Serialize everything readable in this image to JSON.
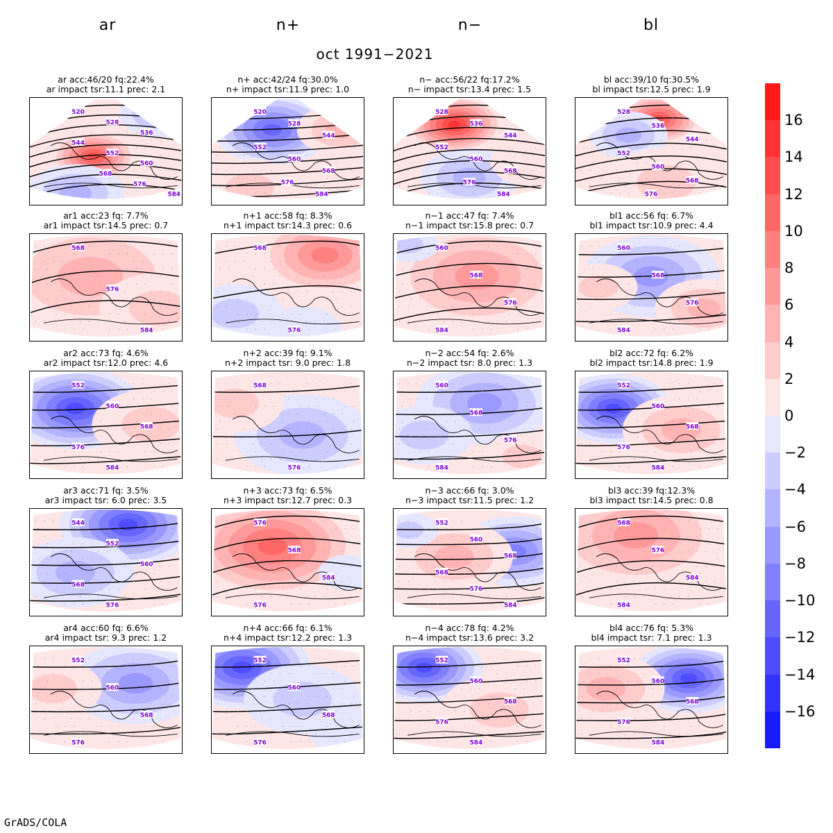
{
  "column_headers": [
    "ar",
    "n+",
    "n−",
    "bl"
  ],
  "main_title": "oct 1991−2021",
  "footer": "GrADS/COLA",
  "colors": {
    "red_max": "#ff1a1a",
    "blue_max": "#1a1aff",
    "contour": "#000000",
    "contour_label": "#7b00d4",
    "coast": "#000000"
  },
  "chart_data": {
    "type": "heatmap",
    "variable_contour_levels": [
      520,
      528,
      536,
      544,
      552,
      560,
      568,
      576,
      584
    ],
    "colorbar": {
      "levels": [
        16,
        14,
        12,
        10,
        8,
        6,
        4,
        2,
        0,
        -2,
        -4,
        -6,
        -8,
        -10,
        -12,
        -14,
        -16
      ],
      "labels": [
        "16",
        "14",
        "12",
        "10",
        "8",
        "6",
        "4",
        "2",
        "0",
        "−2",
        "−4",
        "−6",
        "−8",
        "−10",
        "−12",
        "−14",
        "−16"
      ],
      "colors": [
        "#ff1a1a",
        "#ff3333",
        "#ff4d4d",
        "#ff6666",
        "#ff8080",
        "#ff9999",
        "#ffb3b3",
        "#ffcccc",
        "#ffe6e6",
        "#e6e6ff",
        "#ccccff",
        "#b3b3ff",
        "#9999ff",
        "#8080ff",
        "#6666ff",
        "#4d4dff",
        "#3333ff",
        "#1a1aff"
      ]
    },
    "panels": [
      {
        "id": "ar",
        "title1": "ar acc:46/20 fq:22.4%",
        "title2": "ar impact tsr:11.1 prec: 2.1",
        "anom": [
          {
            "x": 0.42,
            "y": 0.55,
            "v": 14,
            "r": 0.22
          },
          {
            "x": 0.85,
            "y": 0.15,
            "v": -6,
            "r": 0.2
          },
          {
            "x": 0.3,
            "y": 0.9,
            "v": -5,
            "r": 0.25
          }
        ],
        "labels": [
          "520",
          "528",
          "536",
          "544",
          "552",
          "560",
          "568",
          "576",
          "584"
        ]
      },
      {
        "id": "n+",
        "title1": "n+ acc:42/24 fq:30.0%",
        "title2": "n+ impact tsr:11.9 prec: 1.0",
        "anom": [
          {
            "x": 0.4,
            "y": 0.3,
            "v": -11,
            "r": 0.3
          },
          {
            "x": 0.85,
            "y": 0.3,
            "v": 6,
            "r": 0.22
          },
          {
            "x": 0.25,
            "y": 0.85,
            "v": 3,
            "r": 0.25
          }
        ],
        "labels": [
          "520",
          "528",
          "544",
          "552",
          "560",
          "568",
          "576",
          "584"
        ]
      },
      {
        "id": "n-",
        "title1": "n− acc:56/22 fq:17.2%",
        "title2": "n− impact tsr:13.4 prec: 1.5",
        "anom": [
          {
            "x": 0.4,
            "y": 0.25,
            "v": 16,
            "r": 0.25
          },
          {
            "x": 0.5,
            "y": 0.75,
            "v": -6,
            "r": 0.25
          },
          {
            "x": 0.9,
            "y": 0.6,
            "v": 2,
            "r": 0.2
          }
        ],
        "labels": [
          "528",
          "536",
          "544",
          "552",
          "560",
          "568",
          "576",
          "584"
        ]
      },
      {
        "id": "bl",
        "title1": "bl acc:39/10 fq:30.5%",
        "title2": "bl impact tsr:12.5 prec: 1.9",
        "anom": [
          {
            "x": 0.55,
            "y": 0.2,
            "v": 14,
            "r": 0.22
          },
          {
            "x": 0.35,
            "y": 0.35,
            "v": -6,
            "r": 0.2
          },
          {
            "x": 0.6,
            "y": 0.8,
            "v": 3,
            "r": 0.3
          }
        ],
        "labels": [
          "528",
          "536",
          "544",
          "552",
          "560",
          "568",
          "576"
        ]
      },
      {
        "id": "ar1",
        "title1": "ar1 acc:23 fq: 7.7%",
        "title2": "ar1 impact tsr:14.5 prec: 0.7",
        "anom": [
          {
            "x": 0.4,
            "y": 0.4,
            "v": 5,
            "r": 0.5
          },
          {
            "x": 0.85,
            "y": 0.7,
            "v": 4,
            "r": 0.3
          }
        ],
        "labels": [
          "568",
          "576",
          "584"
        ]
      },
      {
        "id": "n+1",
        "title1": "n+1 acc:58 fq: 8.3%",
        "title2": "n+1 impact tsr:14.3 prec: 0.6",
        "anom": [
          {
            "x": 0.75,
            "y": 0.2,
            "v": 9,
            "r": 0.35
          },
          {
            "x": 0.15,
            "y": 0.75,
            "v": -4,
            "r": 0.25
          },
          {
            "x": 0.6,
            "y": 0.9,
            "v": -2,
            "r": 0.2
          }
        ],
        "labels": [
          "568",
          "576"
        ]
      },
      {
        "id": "n-1",
        "title1": "n−1 acc:47 fq: 7.4%",
        "title2": "n−1 impact tsr:15.8 prec: 0.7",
        "anom": [
          {
            "x": 0.55,
            "y": 0.4,
            "v": 8,
            "r": 0.45
          },
          {
            "x": 0.1,
            "y": 0.1,
            "v": -4,
            "r": 0.15
          }
        ],
        "labels": [
          "560",
          "568",
          "576",
          "584"
        ]
      },
      {
        "id": "bl1",
        "title1": "bl1 acc:56 fq: 6.7%",
        "title2": "bl1 impact tsr:10.9 prec: 4.4",
        "anom": [
          {
            "x": 0.5,
            "y": 0.4,
            "v": -8,
            "r": 0.35
          },
          {
            "x": 0.85,
            "y": 0.7,
            "v": 5,
            "r": 0.25
          },
          {
            "x": 0.15,
            "y": 0.5,
            "v": 3,
            "r": 0.2
          }
        ],
        "labels": [
          "560",
          "568",
          "576",
          "584"
        ]
      },
      {
        "id": "ar2",
        "title1": "ar2 acc:73 fq: 4.6%",
        "title2": "ar2 impact tsr:12.0 prec: 4.6",
        "anom": [
          {
            "x": 0.3,
            "y": 0.35,
            "v": -13,
            "r": 0.35
          },
          {
            "x": 0.8,
            "y": 0.5,
            "v": 4,
            "r": 0.3
          }
        ],
        "labels": [
          "552",
          "560",
          "568",
          "576",
          "584"
        ]
      },
      {
        "id": "n+2",
        "title1": "n+2 acc:39 fq: 9.1%",
        "title2": "n+2 impact tsr: 9.0 prec: 1.8",
        "anom": [
          {
            "x": 0.6,
            "y": 0.6,
            "v": -6,
            "r": 0.35
          },
          {
            "x": 0.15,
            "y": 0.3,
            "v": 3,
            "r": 0.25
          }
        ],
        "labels": [
          "568",
          "576"
        ]
      },
      {
        "id": "n-2",
        "title1": "n−2 acc:54 fq: 2.6%",
        "title2": "n−2 impact tsr: 8.0 prec: 1.3",
        "anom": [
          {
            "x": 0.6,
            "y": 0.3,
            "v": -8,
            "r": 0.35
          },
          {
            "x": 0.2,
            "y": 0.6,
            "v": -4,
            "r": 0.25
          },
          {
            "x": 0.85,
            "y": 0.8,
            "v": 3,
            "r": 0.2
          }
        ],
        "labels": [
          "560",
          "568",
          "576",
          "584"
        ]
      },
      {
        "id": "bl2",
        "title1": "bl2 acc:72 fq: 6.2%",
        "title2": "bl2 impact tsr:14.8 prec: 1.9",
        "anom": [
          {
            "x": 0.25,
            "y": 0.35,
            "v": -13,
            "r": 0.3
          },
          {
            "x": 0.7,
            "y": 0.55,
            "v": 5,
            "r": 0.3
          }
        ],
        "labels": [
          "552",
          "560",
          "568",
          "576",
          "584"
        ]
      },
      {
        "id": "ar3",
        "title1": "ar3 acc:71 fq: 3.5%",
        "title2": "ar3 impact tsr: 6.0 prec: 3.5",
        "anom": [
          {
            "x": 0.65,
            "y": 0.15,
            "v": -14,
            "r": 0.35
          },
          {
            "x": 0.3,
            "y": 0.6,
            "v": -5,
            "r": 0.3
          },
          {
            "x": 0.85,
            "y": 0.85,
            "v": 2,
            "r": 0.2
          }
        ],
        "labels": [
          "544",
          "552",
          "560",
          "568",
          "576"
        ]
      },
      {
        "id": "n+3",
        "title1": "n+3 acc:73 fq: 6.5%",
        "title2": "n+3 impact tsr:12.7 prec: 0.3",
        "anom": [
          {
            "x": 0.4,
            "y": 0.35,
            "v": 12,
            "r": 0.45
          },
          {
            "x": 0.9,
            "y": 0.6,
            "v": -2,
            "r": 0.15
          }
        ],
        "labels": [
          "576",
          "568",
          "584",
          "576"
        ]
      },
      {
        "id": "n-3",
        "title1": "n−3 acc:66 fq: 3.0%",
        "title2": "n−3 impact tsr:11.5 prec: 1.2",
        "anom": [
          {
            "x": 0.8,
            "y": 0.4,
            "v": -9,
            "r": 0.3
          },
          {
            "x": 0.4,
            "y": 0.45,
            "v": 5,
            "r": 0.3
          },
          {
            "x": 0.1,
            "y": 0.2,
            "v": -3,
            "r": 0.15
          }
        ],
        "labels": [
          "552",
          "560",
          "568",
          "568",
          "576",
          "584"
        ]
      },
      {
        "id": "bl3",
        "title1": "bl3 acc:39 fq:12.3%",
        "title2": "bl3 impact tsr:14.5 prec: 0.8",
        "anom": [
          {
            "x": 0.4,
            "y": 0.25,
            "v": 8,
            "r": 0.45
          },
          {
            "x": 0.8,
            "y": 0.8,
            "v": 2,
            "r": 0.25
          }
        ],
        "labels": [
          "568",
          "576",
          "584",
          "584"
        ]
      },
      {
        "id": "ar4",
        "title1": "ar4 acc:60 fq: 6.6%",
        "title2": "ar4 impact tsr: 9.3 prec: 1.2",
        "anom": [
          {
            "x": 0.7,
            "y": 0.35,
            "v": -7,
            "r": 0.35
          },
          {
            "x": 0.15,
            "y": 0.4,
            "v": 4,
            "r": 0.25
          }
        ],
        "labels": [
          "552",
          "560",
          "568",
          "576"
        ]
      },
      {
        "id": "n+4",
        "title1": "n+4 acc:66 fq: 6.1%",
        "title2": "n+4 impact tsr:12.2 prec: 1.3",
        "anom": [
          {
            "x": 0.2,
            "y": 0.2,
            "v": -13,
            "r": 0.35
          },
          {
            "x": 0.6,
            "y": 0.5,
            "v": -4,
            "r": 0.3
          },
          {
            "x": 0.9,
            "y": 0.8,
            "v": -2,
            "r": 0.2
          }
        ],
        "labels": [
          "552",
          "560",
          "568",
          "576"
        ]
      },
      {
        "id": "n-4",
        "title1": "n−4 acc:78 fq: 4.2%",
        "title2": "n−4 impact tsr:13.6 prec: 3.2",
        "anom": [
          {
            "x": 0.2,
            "y": 0.2,
            "v": -14,
            "r": 0.3
          },
          {
            "x": 0.7,
            "y": 0.6,
            "v": 4,
            "r": 0.3
          }
        ],
        "labels": [
          "552",
          "560",
          "568",
          "576",
          "584"
        ]
      },
      {
        "id": "bl4",
        "title1": "bl4 acc:76 fq: 5.3%",
        "title2": "bl4 impact tsr: 7.1 prec: 1.3",
        "anom": [
          {
            "x": 0.75,
            "y": 0.3,
            "v": -13,
            "r": 0.3
          },
          {
            "x": 0.2,
            "y": 0.4,
            "v": 5,
            "r": 0.3
          }
        ],
        "labels": [
          "552",
          "560",
          "568",
          "576",
          "584"
        ]
      }
    ]
  }
}
